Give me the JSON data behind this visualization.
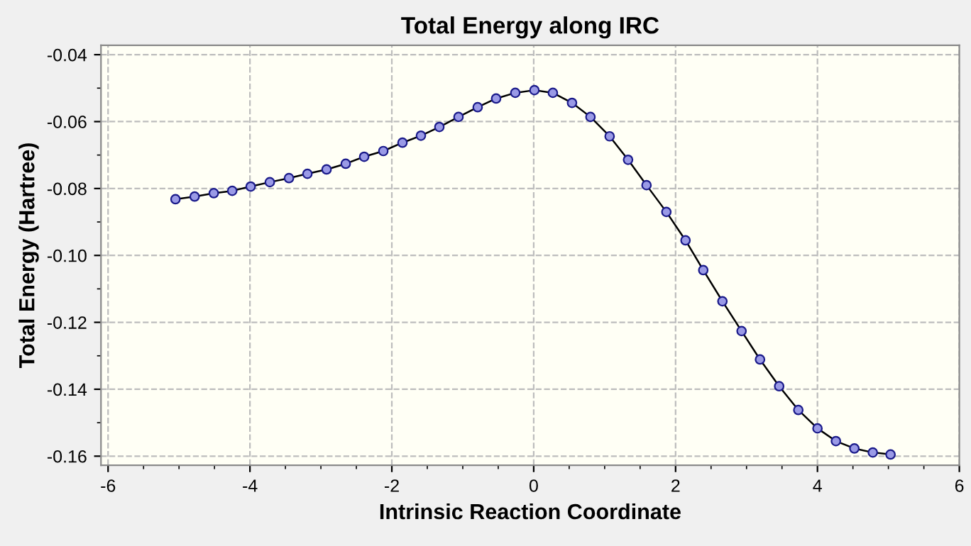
{
  "chart_data": {
    "type": "line",
    "title": "Total Energy along IRC",
    "xlabel": "Intrinsic Reaction Coordinate",
    "ylabel": "Total Energy (Hartree)",
    "x": [
      -5.05,
      -4.78,
      -4.51,
      -4.25,
      -3.99,
      -3.72,
      -3.45,
      -3.19,
      -2.92,
      -2.65,
      -2.39,
      -2.12,
      -1.85,
      -1.59,
      -1.33,
      -1.06,
      -0.79,
      -0.53,
      -0.26,
      0.01,
      0.27,
      0.54,
      0.8,
      1.07,
      1.33,
      1.59,
      1.87,
      2.14,
      2.39,
      2.66,
      2.93,
      3.19,
      3.46,
      3.73,
      4.0,
      4.26,
      4.52,
      4.78,
      5.03
    ],
    "series": [
      {
        "color": "#000000",
        "values": [
          -0.0832,
          -0.0824,
          -0.0814,
          -0.0807,
          -0.0794,
          -0.0781,
          -0.0769,
          -0.0756,
          -0.0743,
          -0.0726,
          -0.0705,
          -0.0688,
          -0.0663,
          -0.0642,
          -0.0616,
          -0.0586,
          -0.0557,
          -0.0531,
          -0.0514,
          -0.0506,
          -0.0514,
          -0.0544,
          -0.0586,
          -0.0644,
          -0.0714,
          -0.079,
          -0.087,
          -0.0955,
          -0.1044,
          -0.1137,
          -0.1226,
          -0.1311,
          -0.1391,
          -0.1462,
          -0.1517,
          -0.1555,
          -0.1577,
          -0.1589,
          -0.1595
        ]
      }
    ],
    "xlim": [
      -6.1,
      6.0
    ],
    "ylim": [
      -0.1627,
      -0.0372
    ],
    "xticks": [
      -6,
      -4,
      -2,
      0,
      2,
      4,
      6
    ],
    "yticks": [
      -0.16,
      -0.14,
      -0.12,
      {
        "value": -0.1,
        "label": "-0.10"
      },
      {
        "value": -0.08,
        "label": "-0.08"
      },
      {
        "value": -0.06,
        "label": "-0.06"
      },
      {
        "value": -0.04,
        "label": "-0.04"
      }
    ],
    "grid": true,
    "marker": "circle",
    "line_style": "solid"
  }
}
